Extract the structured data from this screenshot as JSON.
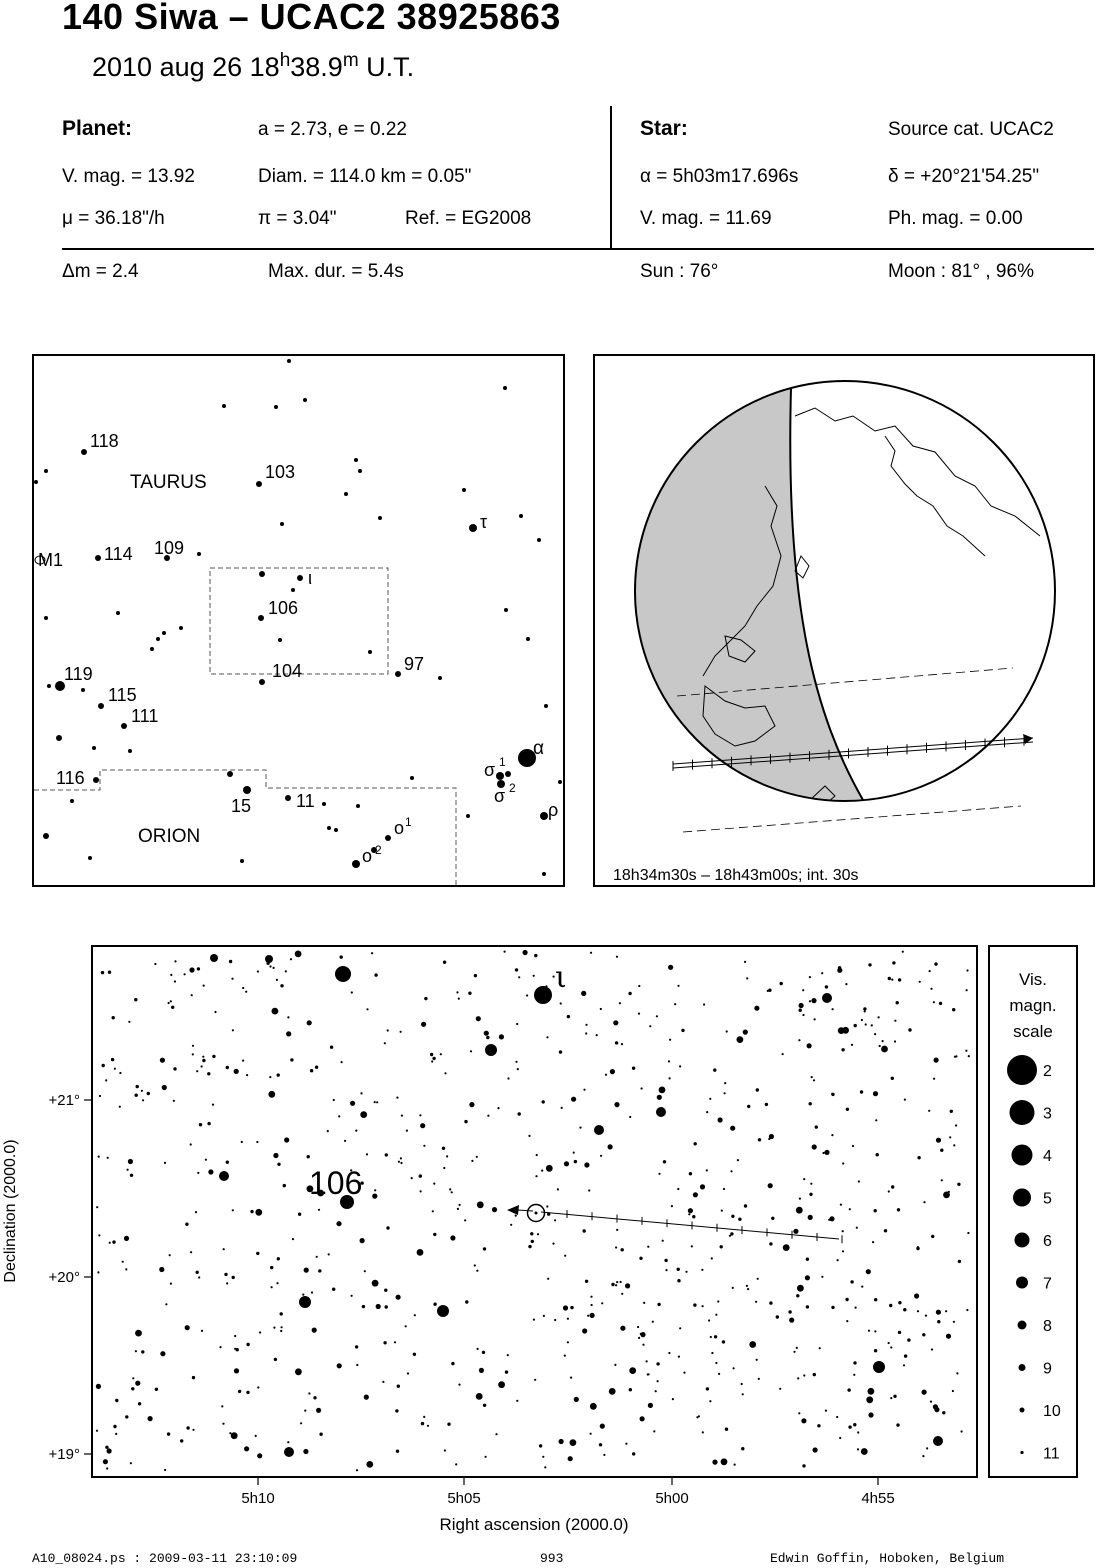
{
  "header": {
    "title": "140 Siwa  –  UCAC2 38925863",
    "date": "2010 aug 26  18",
    "time_h": "h",
    "time_min": "38.9",
    "time_m": "m",
    "time_ut": " U.T."
  },
  "planet": {
    "heading": "Planet:",
    "orbit": "a = 2.73, e = 0.22",
    "vmag": "V. mag. = 13.92",
    "diam": "Diam. = 114.0 km = 0.05\"",
    "mu": "μ =  36.18\"/h",
    "pi": "π =  3.04\"",
    "ref": "Ref. = EG2008"
  },
  "star": {
    "heading": "Star:",
    "source": "Source cat.  UCAC2",
    "alpha": "α =  5h03m17.696s",
    "delta": "δ = +20°21'54.25\"",
    "vmag": "V. mag. = 11.69",
    "phmag": "Ph. mag. =  0.00"
  },
  "event": {
    "dm": "Δm = 2.4",
    "maxdur": "Max. dur. = 5.4s",
    "sun": "Sun :  76°",
    "moon": "Moon :  81° , 96%"
  },
  "finder": {
    "constellations": [
      "TAURUS",
      "ORION"
    ],
    "labels": [
      "118",
      "103",
      "114",
      "109",
      "M1",
      "106",
      "104",
      "97",
      "119",
      "115",
      "111",
      "116",
      "15",
      "11",
      "τ",
      "ι",
      "α",
      "σ",
      "1",
      "σ",
      "2",
      "ρ",
      "ο",
      "1",
      "ο",
      "2"
    ]
  },
  "globe": {
    "caption": "18h34m30s – 18h43m00s; int. 30s"
  },
  "detail": {
    "ylabel": "Declination (2000.0)",
    "xlabel": "Right ascension (2000.0)",
    "y_ticks": [
      "+21°",
      "+20°",
      "+19°"
    ],
    "x_ticks": [
      "5h10",
      "5h05",
      "5h00",
      "4h55"
    ],
    "star_label": "106",
    "star_label_greek": "ι"
  },
  "scale": {
    "title_lines": [
      "Vis.",
      "magn.",
      "scale"
    ],
    "items": [
      "2",
      "3",
      "4",
      "5",
      "6",
      "7",
      "8",
      "9",
      "10",
      "11"
    ]
  },
  "footer": {
    "left": "A10_08024.ps : 2009-03-11 23:10:09",
    "center": "993",
    "right": "Edwin Goffin, Hoboken, Belgium"
  }
}
